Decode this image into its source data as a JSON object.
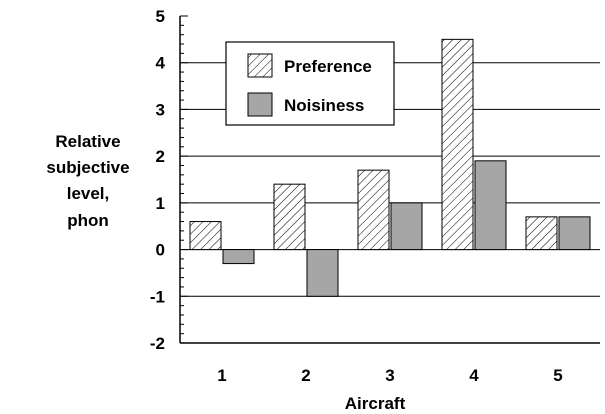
{
  "chart_data": {
    "type": "bar",
    "categories": [
      "1",
      "2",
      "3",
      "4",
      "5"
    ],
    "series": [
      {
        "name": "Preference",
        "values": [
          0.6,
          1.4,
          1.7,
          4.5,
          0.7
        ],
        "fill": "hatch"
      },
      {
        "name": "Noisiness",
        "values": [
          -0.3,
          -1.0,
          1.0,
          1.9,
          0.7
        ],
        "fill": "#a6a6a6"
      }
    ],
    "xlabel": "Aircraft",
    "ylabel_lines": [
      "Relative",
      "subjective",
      "level,",
      "phon"
    ],
    "ylim": [
      -2,
      5
    ],
    "yticks": [
      "-2",
      "-1",
      "0",
      "1",
      "2",
      "3",
      "4",
      "5"
    ],
    "grid": "horizontal",
    "legend_position": "top-left",
    "colors": {
      "axis": "#000000",
      "noisiness_fill": "#a6a6a6",
      "hatch_line": "#000000",
      "background": "#ffffff"
    }
  }
}
